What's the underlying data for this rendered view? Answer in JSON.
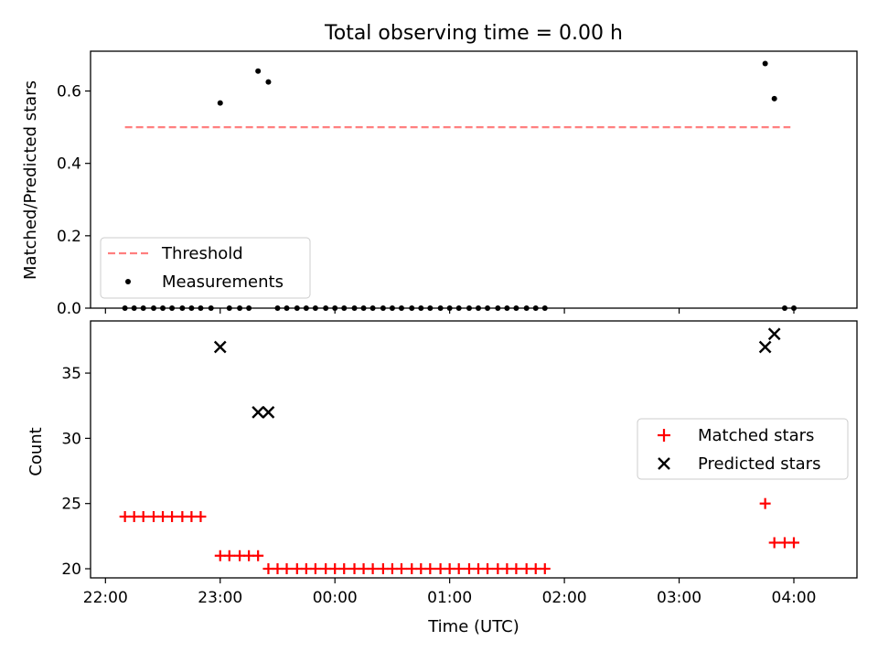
{
  "figure": {
    "title": "Total observing time = 0.00 h"
  },
  "chart_data": [
    {
      "type": "scatter",
      "ylabel": "Matched/Predicted stars",
      "xlabel": "",
      "xlim": [
        21.87,
        4.55
      ],
      "ylim": [
        0.0,
        0.71
      ],
      "x_ticks": [
        22.0,
        23.0,
        0.0,
        1.0,
        2.0,
        3.0,
        4.0
      ],
      "y_ticks": [
        0.0,
        0.2,
        0.4,
        0.6
      ],
      "y_tick_labels": [
        "0.0",
        "0.2",
        "0.4",
        "0.6"
      ],
      "legend_position": "lower-left",
      "threshold": {
        "name": "Threshold",
        "value": 0.5,
        "x_range": [
          22.17,
          3.97
        ],
        "color": "#ff7f7f",
        "style": "dashed"
      },
      "series": [
        {
          "name": "Measurements",
          "color": "#000000",
          "points": [
            [
              22.17,
              0
            ],
            [
              22.25,
              0
            ],
            [
              22.33,
              0
            ],
            [
              22.42,
              0
            ],
            [
              22.5,
              0
            ],
            [
              22.58,
              0
            ],
            [
              22.67,
              0
            ],
            [
              22.75,
              0
            ],
            [
              22.83,
              0
            ],
            [
              22.92,
              0
            ],
            [
              23.0,
              0.567
            ],
            [
              23.08,
              0
            ],
            [
              23.17,
              0
            ],
            [
              23.25,
              0
            ],
            [
              23.33,
              0.655
            ],
            [
              23.42,
              0.625
            ],
            [
              23.5,
              0
            ],
            [
              23.58,
              0
            ],
            [
              23.67,
              0
            ],
            [
              23.75,
              0
            ],
            [
              23.83,
              0
            ],
            [
              23.92,
              0
            ],
            [
              0.0,
              0
            ],
            [
              0.08,
              0
            ],
            [
              0.17,
              0
            ],
            [
              0.25,
              0
            ],
            [
              0.33,
              0
            ],
            [
              0.42,
              0
            ],
            [
              0.5,
              0
            ],
            [
              0.58,
              0
            ],
            [
              0.67,
              0
            ],
            [
              0.75,
              0
            ],
            [
              0.83,
              0
            ],
            [
              0.92,
              0
            ],
            [
              1.0,
              0
            ],
            [
              1.08,
              0
            ],
            [
              1.17,
              0
            ],
            [
              1.25,
              0
            ],
            [
              1.33,
              0
            ],
            [
              1.42,
              0
            ],
            [
              1.5,
              0
            ],
            [
              1.58,
              0
            ],
            [
              1.67,
              0
            ],
            [
              1.75,
              0
            ],
            [
              1.83,
              0
            ],
            [
              3.75,
              0.676
            ],
            [
              3.83,
              0.579
            ],
            [
              3.92,
              0
            ],
            [
              4.0,
              0
            ]
          ]
        }
      ]
    },
    {
      "type": "scatter",
      "ylabel": "Count",
      "xlabel": "Time (UTC)",
      "xlim": [
        21.87,
        4.55
      ],
      "ylim": [
        19.3,
        39.0
      ],
      "x_ticks": [
        22.0,
        23.0,
        0.0,
        1.0,
        2.0,
        3.0,
        4.0
      ],
      "x_tick_labels": [
        "22:00",
        "23:00",
        "00:00",
        "01:00",
        "02:00",
        "03:00",
        "04:00"
      ],
      "y_ticks": [
        20,
        25,
        30,
        35
      ],
      "y_tick_labels": [
        "20",
        "25",
        "30",
        "35"
      ],
      "legend_position": "center-right",
      "series": [
        {
          "name": "Matched stars",
          "color": "#ff0000",
          "marker": "plus",
          "points": [
            [
              22.17,
              24
            ],
            [
              22.25,
              24
            ],
            [
              22.33,
              24
            ],
            [
              22.42,
              24
            ],
            [
              22.5,
              24
            ],
            [
              22.58,
              24
            ],
            [
              22.67,
              24
            ],
            [
              22.75,
              24
            ],
            [
              22.83,
              24
            ],
            [
              23.0,
              21
            ],
            [
              23.08,
              21
            ],
            [
              23.17,
              21
            ],
            [
              23.25,
              21
            ],
            [
              23.33,
              21
            ],
            [
              23.42,
              20
            ],
            [
              23.5,
              20
            ],
            [
              23.58,
              20
            ],
            [
              23.67,
              20
            ],
            [
              23.75,
              20
            ],
            [
              23.83,
              20
            ],
            [
              23.92,
              20
            ],
            [
              0.0,
              20
            ],
            [
              0.08,
              20
            ],
            [
              0.17,
              20
            ],
            [
              0.25,
              20
            ],
            [
              0.33,
              20
            ],
            [
              0.42,
              20
            ],
            [
              0.5,
              20
            ],
            [
              0.58,
              20
            ],
            [
              0.67,
              20
            ],
            [
              0.75,
              20
            ],
            [
              0.83,
              20
            ],
            [
              0.92,
              20
            ],
            [
              1.0,
              20
            ],
            [
              1.08,
              20
            ],
            [
              1.17,
              20
            ],
            [
              1.25,
              20
            ],
            [
              1.33,
              20
            ],
            [
              1.42,
              20
            ],
            [
              1.5,
              20
            ],
            [
              1.58,
              20
            ],
            [
              1.67,
              20
            ],
            [
              1.75,
              20
            ],
            [
              1.83,
              20
            ],
            [
              3.75,
              25
            ],
            [
              3.83,
              22
            ],
            [
              3.92,
              22
            ],
            [
              4.0,
              22
            ]
          ]
        },
        {
          "name": "Predicted stars",
          "color": "#000000",
          "marker": "x",
          "points": [
            [
              23.0,
              37
            ],
            [
              23.33,
              32
            ],
            [
              23.42,
              32
            ],
            [
              3.75,
              37
            ],
            [
              3.83,
              38
            ]
          ]
        }
      ]
    }
  ]
}
